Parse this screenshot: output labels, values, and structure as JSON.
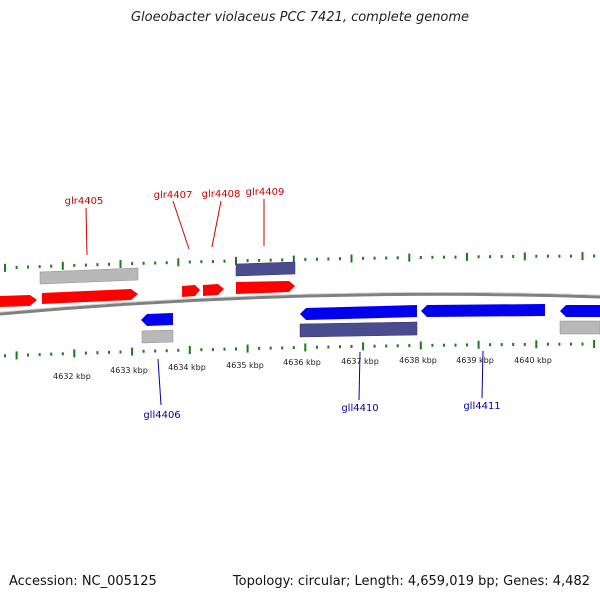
{
  "title": "Gloeobacter violaceus PCC 7421, complete genome",
  "footer": {
    "accession": "Accession: NC_005125",
    "summary": "Topology: circular; Length: 4,659,019 bp; Genes: 4,482"
  },
  "colors": {
    "forward_gene": "#ff0000",
    "reverse_gene": "#0000ee",
    "rna_feature": "#4b4b8f",
    "pseudo_feature": "#b8b8b8",
    "tick": "#1a7a1a",
    "backbone": "#808080",
    "forward_label": "#cc0000",
    "reverse_label": "#0000aa"
  },
  "scale": {
    "ticks": [
      "4632 kbp",
      "4633 kbp",
      "4634 kbp",
      "4635 kbp",
      "4636 kbp",
      "4637 kbp",
      "4638 kbp",
      "4639 kbp",
      "4640 kbp"
    ]
  },
  "genes": {
    "forward_labels": [
      "glr4405",
      "glr4407",
      "glr4408",
      "glr4409"
    ],
    "reverse_labels": [
      "gll4406",
      "gll4410",
      "gll4411"
    ]
  }
}
